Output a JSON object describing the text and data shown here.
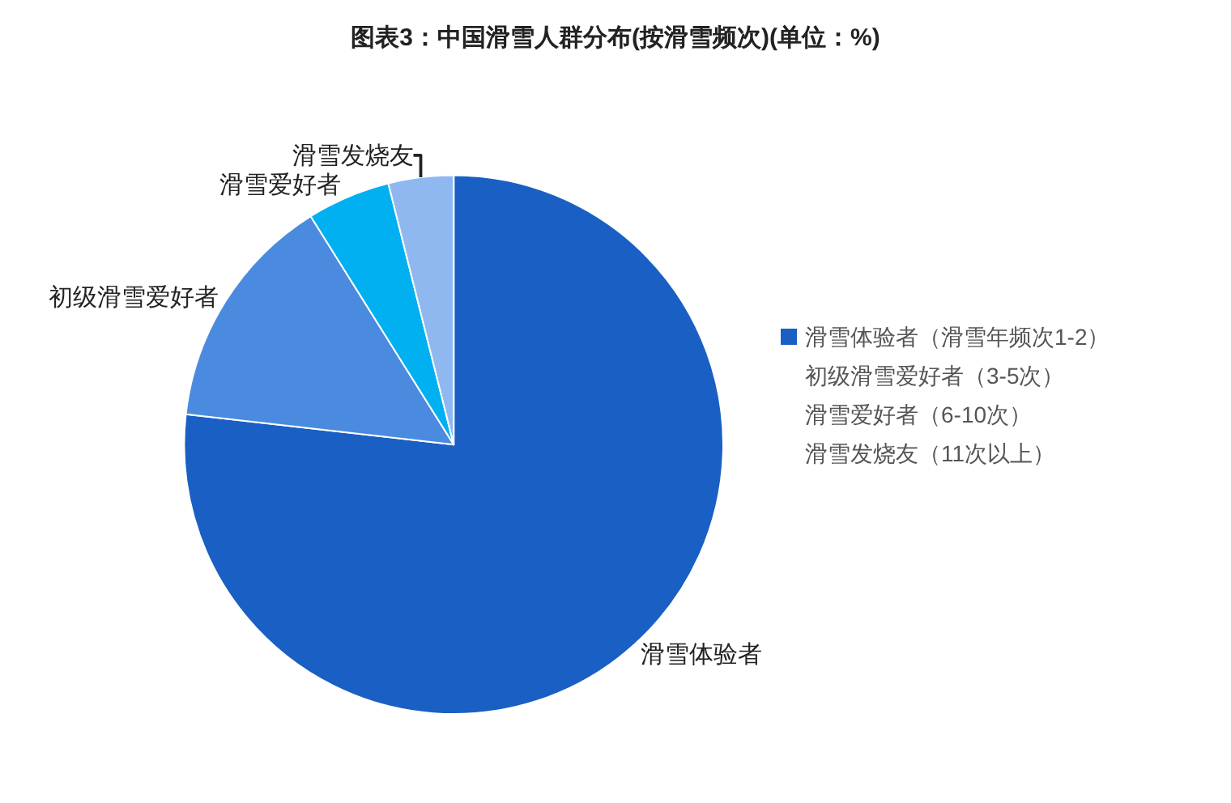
{
  "chart_data": {
    "type": "pie",
    "title": "图表3：中国滑雪人群分布(按滑雪频次)(单位：%)",
    "categories": [
      "滑雪体验者",
      "初级滑雪爱好者",
      "滑雪爱好者",
      "滑雪发烧友"
    ],
    "values": [
      76.8,
      14.3,
      5.0,
      3.9
    ],
    "colors": [
      "#1a5fc4",
      "#4a8be0",
      "#00b0f0",
      "#8fb8f0"
    ],
    "annotations": [
      "滑雪体验者（滑雪年频次1-2）",
      "初级滑雪爱好者（3-5次）",
      "滑雪爱好者（6-10次）",
      "滑雪发烧友（11次以上）"
    ]
  }
}
